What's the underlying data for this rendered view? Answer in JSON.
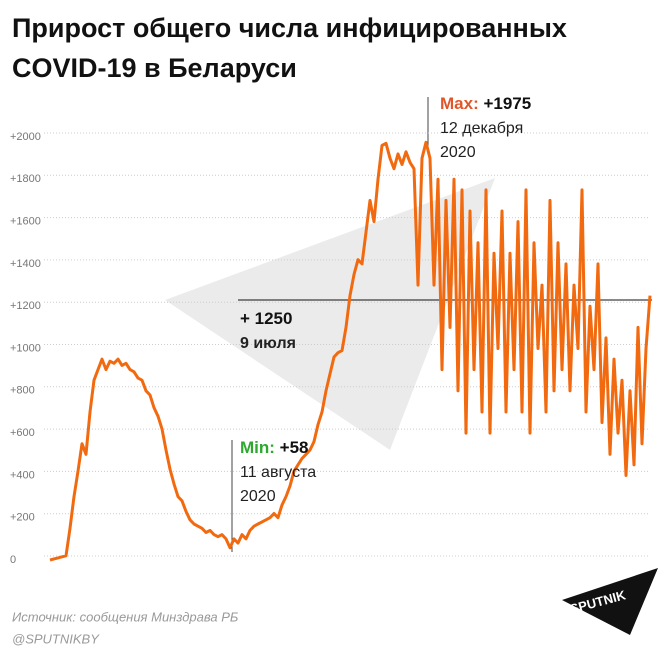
{
  "chart_data": {
    "type": "line",
    "title": "Прирост общего числа инфицированных",
    "subtitle": "COVID-19 в Беларуси",
    "color": "#f26a10",
    "grid": true,
    "ylim": [
      0,
      2000
    ],
    "yticks": [
      0,
      {
        "value": 200,
        "label": "+200"
      },
      {
        "value": 400,
        "label": "+400"
      },
      {
        "value": 600,
        "label": "+600"
      },
      {
        "value": 800,
        "label": "+800"
      },
      {
        "value": 1000,
        "label": "+1000"
      },
      {
        "value": 1200,
        "label": "+1200"
      },
      {
        "value": 1400,
        "label": "+1400"
      },
      {
        "value": 1600,
        "label": "+1600"
      },
      {
        "value": 1800,
        "label": "+1800"
      },
      {
        "value": 2000,
        "label": "+2000"
      }
    ],
    "values": [
      0,
      5,
      10,
      15,
      20,
      150,
      300,
      420,
      550,
      500,
      700,
      850,
      900,
      950,
      900,
      940,
      930,
      950,
      920,
      930,
      900,
      890,
      860,
      850,
      800,
      780,
      720,
      680,
      620,
      520,
      430,
      360,
      300,
      280,
      230,
      190,
      170,
      160,
      150,
      130,
      140,
      120,
      110,
      120,
      100,
      58,
      100,
      80,
      120,
      100,
      140,
      160,
      170,
      180,
      190,
      200,
      220,
      200,
      260,
      300,
      350,
      420,
      450,
      480,
      500,
      520,
      560,
      640,
      700,
      800,
      880,
      960,
      980,
      990,
      1100,
      1250,
      1350,
      1420,
      1400,
      1550,
      1700,
      1600,
      1800,
      1960,
      1970,
      1900,
      1850,
      1920,
      1870,
      1930,
      1880,
      1850,
      1300,
      1900,
      1975,
      1900,
      1300,
      1800,
      900,
      1700,
      1100,
      1800,
      800,
      1750,
      600,
      1650,
      900,
      1500,
      700,
      1750,
      600,
      1450,
      1000,
      1650,
      700,
      1450,
      900,
      1600,
      700,
      1750,
      600,
      1500,
      1000,
      1300,
      700,
      1700,
      800,
      1500,
      900,
      1400,
      800,
      1300,
      1000,
      1750,
      700,
      1200,
      900,
      1400,
      650,
      1050,
      500,
      950,
      600,
      850,
      400,
      800,
      450,
      1100,
      550,
      1000,
      1250
    ],
    "annotations": [
      {
        "label": "Max:",
        "value": "+1975",
        "date": "12 декабря",
        "year": "2020"
      },
      {
        "label": "Min:",
        "value": "+58",
        "date": "11 августа",
        "year": "2020"
      },
      {
        "value": "+ 1250",
        "date": "9 июля"
      }
    ],
    "source": "Источник: сообщения Минздрава РБ",
    "handle": "@SPUTNIKBY",
    "logo": "SPUTNIK"
  }
}
